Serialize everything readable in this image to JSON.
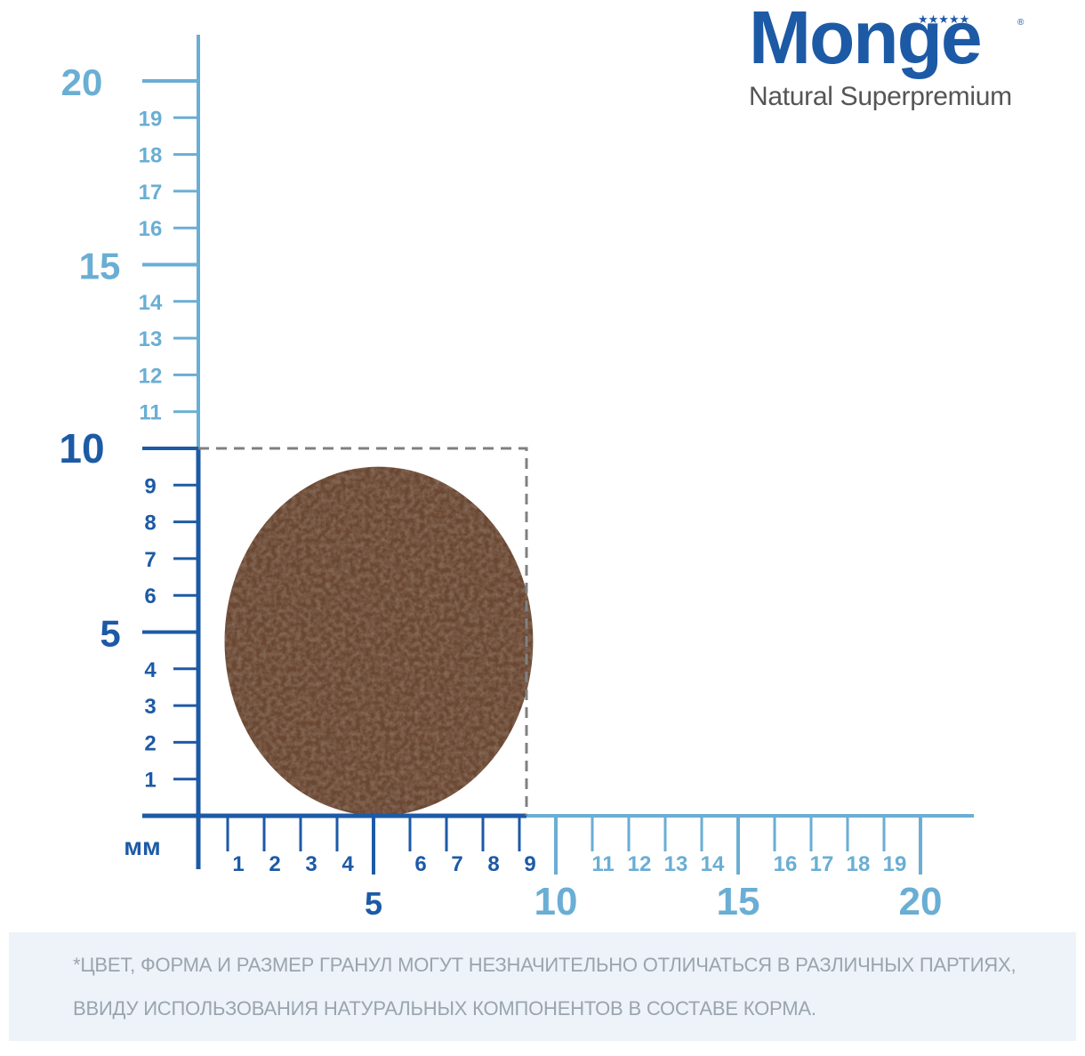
{
  "brand": {
    "name": "Monge",
    "tagline": "Natural Superpremium",
    "stars": "★★★★★",
    "registered": "®"
  },
  "ruler": {
    "unit_label": "мм",
    "y_axis": {
      "range": [
        0,
        20
      ],
      "major_labels": [
        5,
        10,
        15,
        20
      ],
      "minor_labels": [
        1,
        2,
        3,
        4,
        6,
        7,
        8,
        9,
        11,
        12,
        13,
        14,
        16,
        17,
        18,
        19
      ]
    },
    "x_axis": {
      "range": [
        0,
        20
      ],
      "major_labels": [
        5,
        10,
        15,
        20
      ],
      "minor_labels": [
        1,
        2,
        3,
        4,
        6,
        7,
        8,
        9,
        11,
        12,
        13,
        14,
        16,
        17,
        18,
        19
      ]
    },
    "highlight_range": [
      0,
      10
    ],
    "colors": {
      "dark_blue": "#1d5aa6",
      "light_blue": "#6aaed4",
      "dashed_box": "#808080",
      "kibble": "#6b4733"
    }
  },
  "kibble": {
    "width_mm": 9,
    "height_mm": 10
  },
  "footnote": {
    "line1": "*ЦВЕТ, ФОРМА И РАЗМЕР ГРАНУЛ МОГУТ НЕЗНАЧИТЕЛЬНО ОТЛИЧАТЬСЯ В РАЗЛИЧНЫХ ПАРТИЯХ,",
    "line2": "ВВИДУ ИСПОЛЬЗОВАНИЯ НАТУРАЛЬНЫХ КОМПОНЕНТОВ В СОСТАВЕ КОРМА."
  }
}
